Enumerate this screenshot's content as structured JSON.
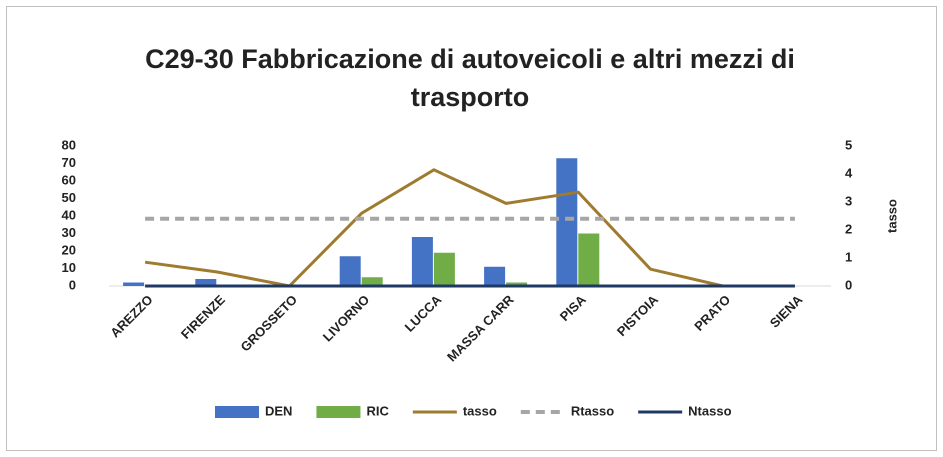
{
  "chart_data": {
    "type": "bar",
    "title": "C29-30 Fabbricazione di autoveicoli e altri mezzi di trasporto",
    "categories": [
      "AREZZO",
      "FIRENZE",
      "GROSSETO",
      "LIVORNO",
      "LUCCA",
      "MASSA CARR",
      "PISA",
      "PISTOIA",
      "PRATO",
      "SIENA"
    ],
    "series": [
      {
        "name": "DEN",
        "type": "bar",
        "color": "#4472c4",
        "values": [
          2,
          4,
          0,
          17,
          28,
          11,
          73,
          0,
          0,
          0
        ]
      },
      {
        "name": "RIC",
        "type": "bar",
        "color": "#70ad47",
        "values": [
          0,
          0,
          0,
          5,
          19,
          2,
          30,
          0,
          0,
          0
        ]
      },
      {
        "name": "tasso",
        "type": "line",
        "axis": "y2",
        "color": "#9e7b2f",
        "values": [
          0.85,
          0.5,
          0,
          2.6,
          4.15,
          2.95,
          3.35,
          0.6,
          0,
          0
        ]
      },
      {
        "name": "Rtasso",
        "type": "line",
        "axis": "y2",
        "dashed": true,
        "color": "#a6a6a6",
        "values": [
          2.4,
          2.4,
          2.4,
          2.4,
          2.4,
          2.4,
          2.4,
          2.4,
          2.4,
          2.4
        ]
      },
      {
        "name": "Ntasso",
        "type": "line",
        "axis": "y2",
        "color": "#1f3864",
        "values": [
          0,
          0,
          0,
          0,
          0,
          0,
          0,
          0,
          0,
          0
        ]
      }
    ],
    "ylim": [
      0,
      80
    ],
    "yticks": [
      0,
      10,
      20,
      30,
      40,
      50,
      60,
      70,
      80
    ],
    "y2lim": [
      0,
      5
    ],
    "y2ticks": [
      0,
      1,
      2,
      3,
      4,
      5
    ],
    "y2label": "tasso",
    "legend": "bottom"
  }
}
